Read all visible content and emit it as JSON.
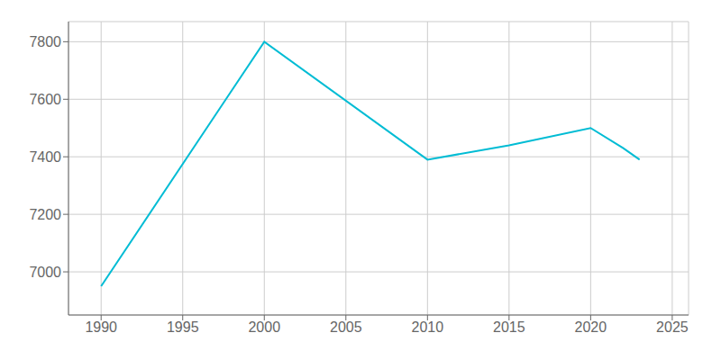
{
  "chart_data": {
    "type": "line",
    "x": [
      1990,
      2000,
      2010,
      2015,
      2020,
      2022,
      2023
    ],
    "values": [
      6950,
      7800,
      7390,
      7440,
      7500,
      7430,
      7390
    ],
    "color": "#00bcd4",
    "xlim": [
      1988,
      2026
    ],
    "ylim": [
      6850,
      7870
    ],
    "xticks": [
      1990,
      1995,
      2000,
      2005,
      2010,
      2015,
      2020,
      2025
    ],
    "yticks": [
      7000,
      7200,
      7400,
      7600,
      7800
    ],
    "grid": true
  }
}
